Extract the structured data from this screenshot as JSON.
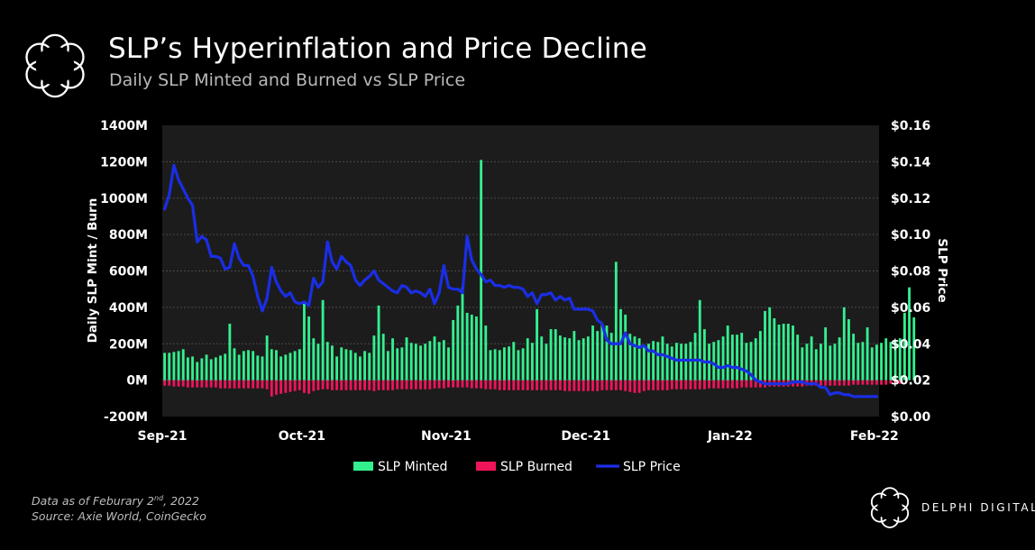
{
  "header": {
    "title": "SLP’s Hyperinflation and Price Decline",
    "subtitle": "Daily SLP Minted and Burned vs SLP Price"
  },
  "footer": {
    "note_prefix": "Data as of Feburary 2",
    "note_sup": "nd",
    "note_suffix": ", 2022",
    "source": "Source:  Axie World, CoinGecko",
    "brand": "DELPHI DIGITAL"
  },
  "colors": {
    "minted": "#33f08f",
    "burned": "#f0145a",
    "price": "#1a2ee6",
    "plot_bg": "#1c1c1c",
    "grid": "#4a4a4a"
  },
  "chart_data": {
    "type": "bar",
    "title": "SLP’s Hyperinflation and Price Decline",
    "subtitle": "Daily SLP Minted and Burned vs SLP Price",
    "ylabel": "Daily SLP Mint / Burn",
    "y2label": "SLP Price",
    "ylim": [
      -200,
      1400
    ],
    "y2lim": [
      0,
      0.16
    ],
    "y_ticks": [
      "-200M",
      "0M",
      "200M",
      "400M",
      "600M",
      "800M",
      "1000M",
      "1200M",
      "1400M"
    ],
    "y2_ticks": [
      "$0.00",
      "$0.02",
      "$0.04",
      "$0.06",
      "$0.08",
      "$0.10",
      "$0.12",
      "$0.14",
      "$0.16"
    ],
    "x_ticks": [
      {
        "label": "Sep-21",
        "day": 0
      },
      {
        "label": "Oct-21",
        "day": 30
      },
      {
        "label": "Nov-21",
        "day": 61
      },
      {
        "label": "Dec-21",
        "day": 91
      },
      {
        "label": "Jan-22",
        "day": 122
      },
      {
        "label": "Feb-22",
        "day": 153
      }
    ],
    "x_range_days": [
      0,
      154
    ],
    "legend": {
      "position": "bottom-center",
      "entries": [
        {
          "label": "SLP Minted",
          "series": "minted"
        },
        {
          "label": "SLP Burned",
          "series": "burned"
        },
        {
          "label": "SLP Price",
          "series": "price"
        }
      ]
    },
    "series": [
      {
        "name": "SLP Minted",
        "type": "bar",
        "axis": "left",
        "values": [
          150,
          150,
          155,
          160,
          170,
          125,
          130,
          100,
          120,
          140,
          115,
          125,
          135,
          145,
          310,
          175,
          140,
          160,
          165,
          160,
          135,
          130,
          245,
          170,
          165,
          130,
          140,
          150,
          160,
          170,
          420,
          350,
          230,
          200,
          440,
          210,
          190,
          130,
          180,
          170,
          165,
          150,
          130,
          160,
          150,
          245,
          410,
          255,
          160,
          230,
          175,
          180,
          235,
          205,
          200,
          190,
          200,
          215,
          240,
          210,
          220,
          180,
          330,
          410,
          510,
          370,
          360,
          350,
          1210,
          300,
          165,
          170,
          165,
          180,
          185,
          210,
          165,
          175,
          230,
          205,
          390,
          240,
          200,
          280,
          280,
          245,
          235,
          230,
          270,
          220,
          230,
          240,
          300,
          270,
          310,
          300,
          260,
          650,
          390,
          360,
          255,
          240,
          230,
          185,
          200,
          215,
          210,
          240,
          200,
          185,
          205,
          200,
          200,
          210,
          260,
          440,
          280,
          200,
          210,
          220,
          240,
          300,
          250,
          250,
          260,
          205,
          210,
          230,
          270,
          380,
          400,
          340,
          305,
          310,
          310,
          300,
          250,
          180,
          200,
          240,
          170,
          200,
          290,
          190,
          200,
          235,
          400,
          335,
          255,
          205,
          210,
          290,
          180,
          195,
          205,
          230,
          210,
          220,
          230,
          370,
          510,
          345
        ]
      },
      {
        "name": "SLP Burned",
        "type": "bar",
        "axis": "left",
        "values": [
          -30,
          -30,
          -35,
          -35,
          -35,
          -40,
          -40,
          -40,
          -40,
          -40,
          -40,
          -40,
          -45,
          -45,
          -45,
          -45,
          -45,
          -45,
          -45,
          -45,
          -45,
          -45,
          -50,
          -90,
          -80,
          -75,
          -70,
          -65,
          -60,
          -55,
          -70,
          -75,
          -60,
          -55,
          -50,
          -50,
          -55,
          -55,
          -55,
          -55,
          -55,
          -55,
          -55,
          -55,
          -55,
          -60,
          -55,
          -55,
          -55,
          -55,
          -50,
          -50,
          -50,
          -50,
          -50,
          -50,
          -50,
          -50,
          -45,
          -45,
          -45,
          -40,
          -40,
          -40,
          -40,
          -40,
          -45,
          -45,
          -45,
          -50,
          -50,
          -50,
          -55,
          -55,
          -55,
          -55,
          -55,
          -55,
          -55,
          -55,
          -55,
          -55,
          -55,
          -55,
          -55,
          -55,
          -60,
          -60,
          -60,
          -60,
          -60,
          -60,
          -60,
          -60,
          -55,
          -55,
          -55,
          -55,
          -55,
          -60,
          -65,
          -70,
          -70,
          -60,
          -55,
          -55,
          -55,
          -55,
          -55,
          -50,
          -50,
          -50,
          -50,
          -50,
          -50,
          -50,
          -50,
          -45,
          -45,
          -45,
          -45,
          -45,
          -45,
          -45,
          -40,
          -40,
          -40,
          -40,
          -40,
          -40,
          -35,
          -35,
          -35,
          -35,
          -35,
          -35,
          -35,
          -35,
          -30,
          -30,
          -30,
          -30,
          -30,
          -30,
          -30,
          -30,
          -30,
          -30,
          -25,
          -25,
          -25,
          -25,
          -25,
          -25,
          -25,
          -25,
          -20,
          -20,
          -20
        ]
      },
      {
        "name": "SLP Price",
        "type": "line",
        "axis": "right",
        "x": [
          0,
          1,
          2,
          3,
          4,
          5,
          6,
          7,
          8,
          9,
          10,
          11,
          12,
          13,
          14,
          15,
          16,
          17,
          18,
          19,
          20,
          21,
          22,
          23,
          24,
          25,
          26,
          27,
          28,
          29,
          30,
          31,
          32,
          33,
          34,
          35,
          36,
          37,
          38,
          39,
          40,
          41,
          42,
          43,
          44,
          45,
          46,
          47,
          48,
          49,
          50,
          51,
          52,
          53,
          54,
          55,
          56,
          57,
          58,
          59,
          60,
          61,
          62,
          63,
          64,
          65,
          66,
          67,
          68,
          69,
          70,
          71,
          72,
          73,
          74,
          75,
          76,
          77,
          78,
          79,
          80,
          81,
          82,
          83,
          84,
          85,
          86,
          87,
          88,
          89,
          90,
          91,
          92,
          93,
          94,
          95,
          96,
          97,
          98,
          99,
          100,
          101,
          102,
          103,
          104,
          105,
          106,
          107,
          108,
          109,
          110,
          111,
          112,
          113,
          114,
          115,
          116,
          117,
          118,
          119,
          120,
          121,
          122,
          123,
          124,
          125,
          126,
          127,
          128,
          129,
          130,
          131,
          132,
          133,
          134,
          135,
          136,
          137,
          138,
          139,
          140,
          141,
          142,
          143,
          144,
          145,
          146,
          147,
          148,
          149,
          150,
          151,
          152,
          153
        ],
        "values": [
          0.114,
          0.122,
          0.138,
          0.13,
          0.125,
          0.12,
          0.116,
          0.096,
          0.099,
          0.097,
          0.088,
          0.088,
          0.087,
          0.081,
          0.082,
          0.095,
          0.087,
          0.083,
          0.083,
          0.077,
          0.066,
          0.058,
          0.065,
          0.082,
          0.074,
          0.069,
          0.066,
          0.068,
          0.063,
          0.062,
          0.063,
          0.061,
          0.076,
          0.071,
          0.074,
          0.096,
          0.085,
          0.081,
          0.088,
          0.085,
          0.083,
          0.075,
          0.072,
          0.075,
          0.077,
          0.08,
          0.075,
          0.073,
          0.071,
          0.069,
          0.068,
          0.072,
          0.071,
          0.068,
          0.069,
          0.068,
          0.066,
          0.07,
          0.062,
          0.068,
          0.083,
          0.071,
          0.07,
          0.07,
          0.068,
          0.099,
          0.086,
          0.081,
          0.078,
          0.074,
          0.075,
          0.072,
          0.072,
          0.071,
          0.072,
          0.071,
          0.071,
          0.07,
          0.066,
          0.068,
          0.062,
          0.067,
          0.067,
          0.068,
          0.064,
          0.066,
          0.064,
          0.065,
          0.059,
          0.059,
          0.059,
          0.059,
          0.058,
          0.053,
          0.051,
          0.042,
          0.04,
          0.04,
          0.04,
          0.046,
          0.04,
          0.039,
          0.038,
          0.039,
          0.036,
          0.036,
          0.034,
          0.034,
          0.033,
          0.032,
          0.031,
          0.031,
          0.031,
          0.031,
          0.031,
          0.031,
          0.03,
          0.03,
          0.029,
          0.027,
          0.027,
          0.028,
          0.027,
          0.027,
          0.026,
          0.025,
          0.023,
          0.02,
          0.019,
          0.018,
          0.018,
          0.018,
          0.018,
          0.018,
          0.018,
          0.019,
          0.019,
          0.019,
          0.018,
          0.018,
          0.018,
          0.016,
          0.016,
          0.012,
          0.013,
          0.013,
          0.012,
          0.012,
          0.011,
          0.011,
          0.011,
          0.011,
          0.011,
          0.011
        ]
      }
    ]
  }
}
